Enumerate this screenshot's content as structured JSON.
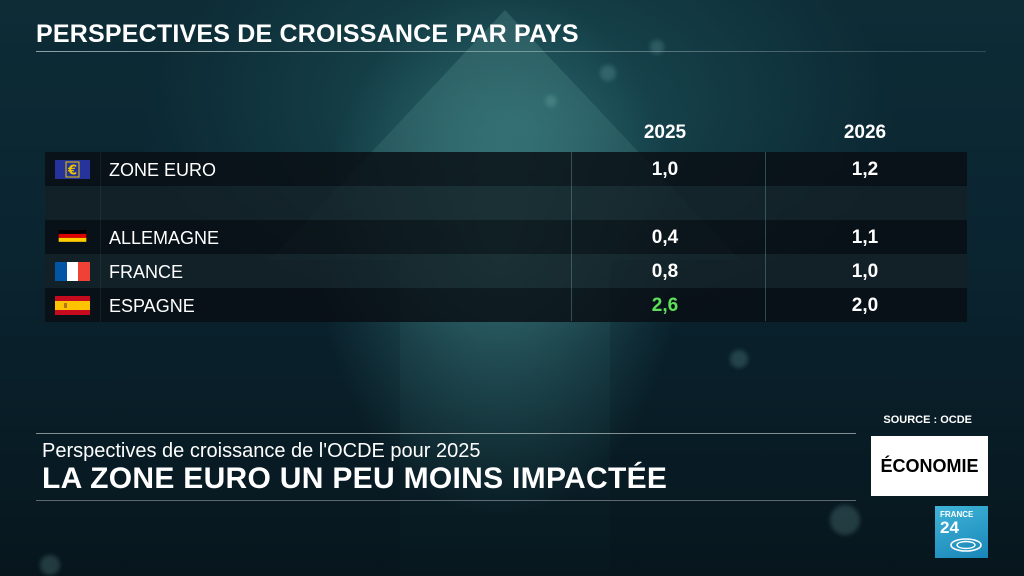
{
  "title": "PERSPECTIVES DE CROISSANCE PAR PAYS",
  "columns": [
    "2025",
    "2026"
  ],
  "rows": [
    {
      "flag": "eu-flag-icon",
      "country": "ZONE EURO",
      "v2025": "1,0",
      "v2026": "1,2"
    },
    {
      "flag": "",
      "country": "",
      "v2025": "",
      "v2026": ""
    },
    {
      "flag": "germany-flag-icon",
      "country": "ALLEMAGNE",
      "v2025": "0,4",
      "v2026": "1,1"
    },
    {
      "flag": "france-flag-icon",
      "country": "FRANCE",
      "v2025": "0,8",
      "v2026": "1,0"
    },
    {
      "flag": "spain-flag-icon",
      "country": "ESPAGNE",
      "v2025": "2,6",
      "v2026": "2,0"
    }
  ],
  "highlight_color": "#5ee05a",
  "source": "SOURCE : OCDE",
  "lower_third": {
    "subtitle": "Perspectives de croissance de l'OCDE pour 2025",
    "headline": "LA ZONE EURO UN PEU MOINS IMPACTÉE"
  },
  "section_tag": "ÉCONOMIE",
  "logo": {
    "line1": "FRANCE",
    "line2": "24"
  }
}
